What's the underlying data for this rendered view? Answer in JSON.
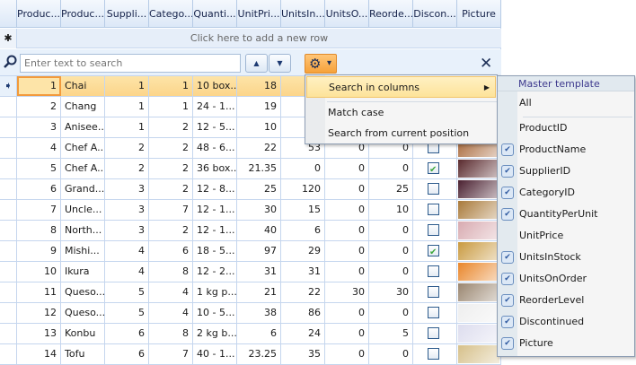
{
  "grid": {
    "columns": [
      "Produc...",
      "Produc...",
      "Suppli...",
      "Catego...",
      "Quanti...",
      "UnitPri...",
      "UnitsIn...",
      "UnitsO...",
      "Reorde...",
      "Discon...",
      "Picture"
    ],
    "new_row_text": "Click here to add a new row",
    "new_row_icon": "asterisk-icon",
    "current_row_icon": "arrow-right-icon",
    "rows": [
      [
        "1",
        "Chai",
        "1",
        "1",
        "10 box...",
        "18",
        "",
        "",
        "",
        null
      ],
      [
        "2",
        "Chang",
        "1",
        "1",
        "24 - 1...",
        "19",
        "",
        "",
        "",
        null
      ],
      [
        "3",
        "Anisee...",
        "1",
        "2",
        "12 - 5...",
        "10",
        "",
        "",
        "",
        null
      ],
      [
        "4",
        "Chef A...",
        "2",
        "2",
        "48 - 6...",
        "22",
        "53",
        "0",
        "0",
        false
      ],
      [
        "5",
        "Chef A...",
        "2",
        "2",
        "36 box...",
        "21.35",
        "0",
        "0",
        "0",
        true
      ],
      [
        "6",
        "Grand...",
        "3",
        "2",
        "12 - 8...",
        "25",
        "120",
        "0",
        "25",
        false
      ],
      [
        "7",
        "Uncle...",
        "3",
        "7",
        "12 - 1...",
        "30",
        "15",
        "0",
        "10",
        false
      ],
      [
        "8",
        "North...",
        "3",
        "2",
        "12 - 1...",
        "40",
        "6",
        "0",
        "0",
        false
      ],
      [
        "9",
        "Mishi...",
        "4",
        "6",
        "18 - 5...",
        "97",
        "29",
        "0",
        "0",
        true
      ],
      [
        "10",
        "Ikura",
        "4",
        "8",
        "12 - 2...",
        "31",
        "31",
        "0",
        "0",
        false
      ],
      [
        "11",
        "Queso...",
        "5",
        "4",
        "1 kg p...",
        "21",
        "22",
        "30",
        "30",
        false
      ],
      [
        "12",
        "Queso...",
        "5",
        "4",
        "10 - 5...",
        "38",
        "86",
        "0",
        "0",
        false
      ],
      [
        "13",
        "Konbu",
        "6",
        "8",
        "2 kg b...",
        "6",
        "24",
        "0",
        "5",
        false
      ],
      [
        "14",
        "Tofu",
        "6",
        "7",
        "40 - 1...",
        "23.25",
        "35",
        "0",
        "0",
        false
      ]
    ]
  },
  "search": {
    "placeholder": "Enter text to search",
    "up_label": "▲",
    "down_label": "▼",
    "gear": "⚙",
    "dropdown": "▾",
    "close": "✕"
  },
  "menu": {
    "items": [
      "Search in columns",
      "Match case",
      "Search from current position"
    ],
    "arrow": "▶"
  },
  "submenu": {
    "title": "Master template",
    "all": "All",
    "columns": [
      {
        "label": "ProductID",
        "checked": false
      },
      {
        "label": "ProductName",
        "checked": true
      },
      {
        "label": "SupplierID",
        "checked": true
      },
      {
        "label": "CategoryID",
        "checked": true
      },
      {
        "label": "QuantityPerUnit",
        "checked": true
      },
      {
        "label": "UnitPrice",
        "checked": false
      },
      {
        "label": "UnitsInStock",
        "checked": true
      },
      {
        "label": "UnitsOnOrder",
        "checked": true
      },
      {
        "label": "ReorderLevel",
        "checked": true
      },
      {
        "label": "Discontinued",
        "checked": true
      },
      {
        "label": "Picture",
        "checked": true
      }
    ]
  },
  "colors": {
    "accent": "#f6a13a",
    "selected_row": "#fcd58a",
    "header": "#dce8f7"
  }
}
